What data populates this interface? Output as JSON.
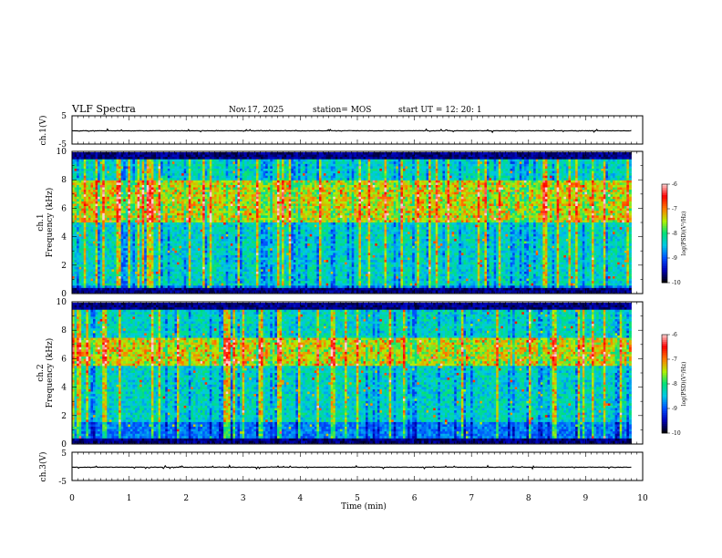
{
  "header": {
    "title": "VLF Spectra",
    "date": "Nov.17, 2025",
    "station": "station= MOS",
    "start_time": "start  UT =   12: 20: 1"
  },
  "chart_data": [
    {
      "type": "line",
      "id": "ch1-waveform",
      "ylabel": "ch.1(V)",
      "ylim": [
        -5,
        5
      ],
      "yticks": [
        "5",
        "-5"
      ],
      "x_range_min": [
        0,
        9.8
      ],
      "baseline_volts": -0.3
    },
    {
      "type": "heatmap",
      "id": "ch1-spectrogram",
      "ylabel": [
        "ch.1",
        "Frequency  (kHz)"
      ],
      "ylim": [
        0,
        10
      ],
      "yticks": [
        "0",
        "2",
        "4",
        "6",
        "8",
        "10"
      ],
      "x_range_min": [
        0,
        9.8
      ],
      "colorbar": {
        "label": "log(PSD)(V²/Hz)",
        "range": [
          -10,
          -6
        ],
        "ticks": [
          "-6",
          "-7",
          "-8",
          "-9",
          "-10"
        ]
      },
      "dominant_band_khz": [
        0.5,
        9.5
      ],
      "peak_band_khz": [
        5,
        8
      ]
    },
    {
      "type": "heatmap",
      "id": "ch2-spectrogram",
      "ylabel": [
        "ch.2",
        "Frequency  (kHz)"
      ],
      "ylim": [
        0,
        10
      ],
      "yticks": [
        "0",
        "2",
        "4",
        "6",
        "8",
        "10"
      ],
      "x_range_min": [
        0,
        9.8
      ],
      "colorbar": {
        "label": "log(PSD)(V²/Hz)",
        "range": [
          -10,
          -6
        ],
        "ticks": [
          "-6",
          "-7",
          "-8",
          "-9",
          "-10"
        ]
      },
      "dominant_band_khz": [
        1.5,
        9.5
      ],
      "peak_band_khz": [
        5.5,
        7.5
      ]
    },
    {
      "type": "line",
      "id": "ch3-waveform",
      "ylabel": "ch.3(V)",
      "ylim": [
        -5,
        5
      ],
      "yticks": [
        "5",
        "-5"
      ],
      "x_range_min": [
        0,
        9.8
      ],
      "baseline_volts": -0.3
    }
  ],
  "x_axis": {
    "xlabel": "Time  (min)",
    "xlim": [
      0,
      10
    ],
    "ticks": [
      "0",
      "1",
      "2",
      "3",
      "4",
      "5",
      "6",
      "7",
      "8",
      "9",
      "10"
    ]
  },
  "colormap": [
    "#000000",
    "#0000b4",
    "#0050ff",
    "#00c8e6",
    "#00e07a",
    "#b4f000",
    "#ff7a00",
    "#ff0000",
    "#ffd0d0"
  ]
}
